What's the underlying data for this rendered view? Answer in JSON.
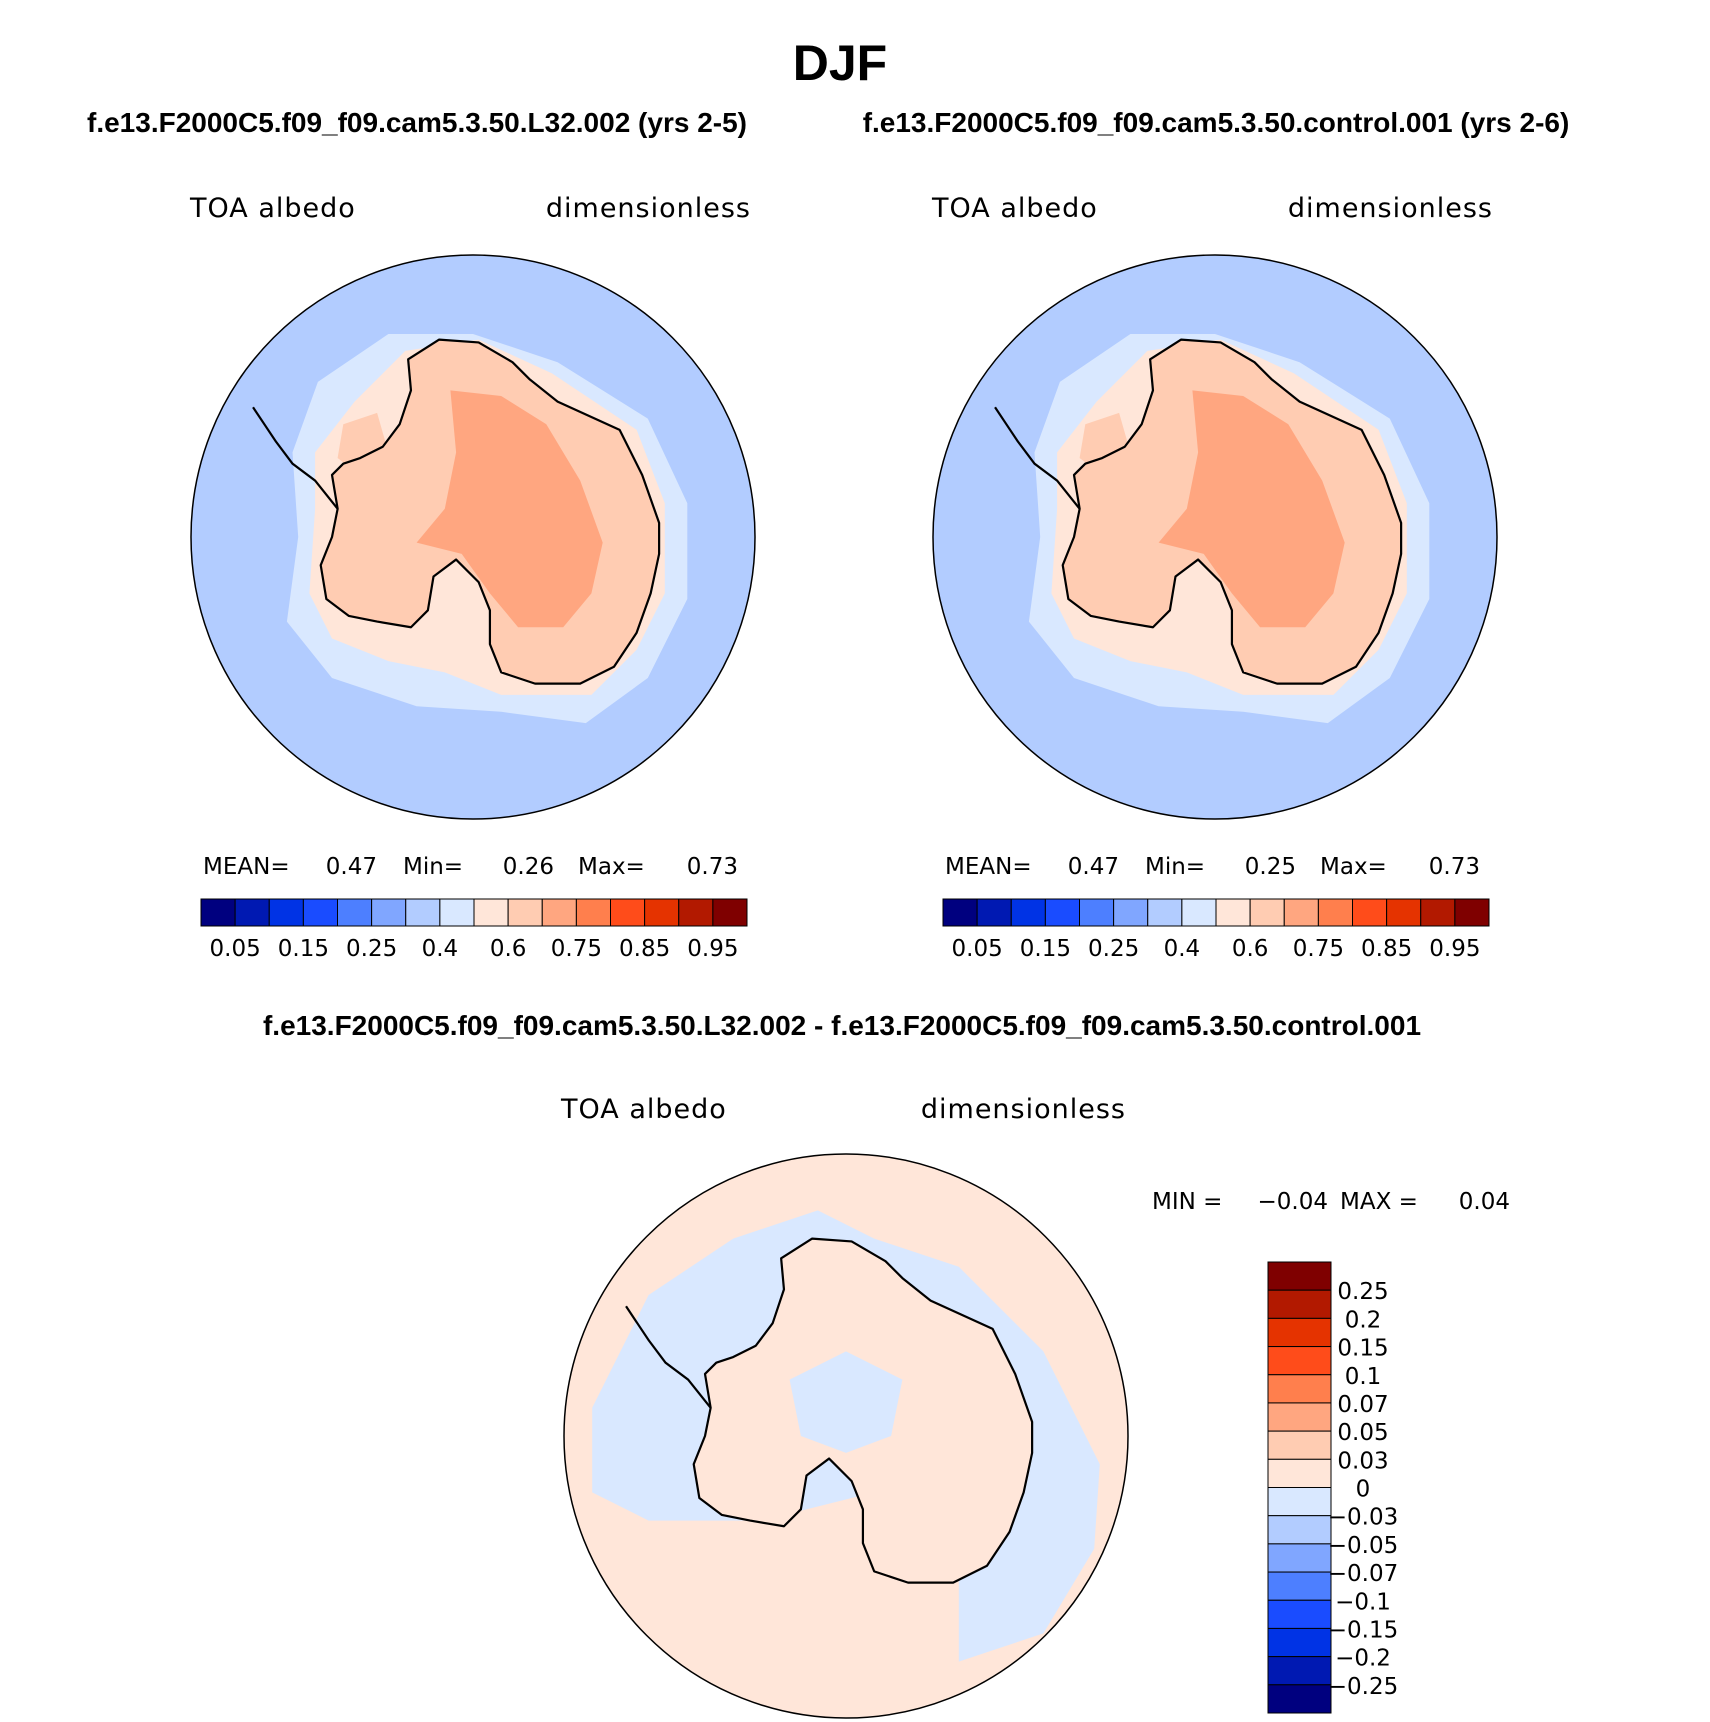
{
  "figure": {
    "title": "DJF"
  },
  "palettes": {
    "full_field": [
      "#00007f",
      "#0019b2",
      "#0033e5",
      "#1a4cff",
      "#4d7fff",
      "#80a6ff",
      "#b2ccff",
      "#d9e8ff",
      "#ffe6d9",
      "#ffccb2",
      "#ffa680",
      "#ff7f4d",
      "#ff4c1a",
      "#e53300",
      "#b21900",
      "#7f0000"
    ],
    "difference": [
      "#00007f",
      "#0019b2",
      "#0033e5",
      "#1a4cff",
      "#4d7fff",
      "#80a6ff",
      "#b2ccff",
      "#d9e8ff",
      "#ffe6d9",
      "#ffccb2",
      "#ffa680",
      "#ff7f4d",
      "#ff4c1a",
      "#e53300",
      "#b21900",
      "#7f0000"
    ],
    "ocean": "#b2ccff",
    "sea_ice": "#d9e8ff",
    "ice_edge": "#ffe6d9",
    "continent": "#ffccb2",
    "plateau": "#ffa680",
    "diff_pos": "#ffe6d9",
    "diff_neg": "#d9e8ff"
  },
  "chart_data": [
    {
      "type": "heatmap",
      "projection": "south-polar-stereographic",
      "title": "f.e13.F2000C5.f09_f09.cam5.3.50.L32.002 (yrs 2-5)",
      "variable": "TOA albedo",
      "units": "dimensionless",
      "stats": {
        "mean_label": "MEAN=",
        "mean": "0.47",
        "min_label": "Min=",
        "min": "0.26",
        "max_label": "Max=",
        "max": "0.73"
      },
      "colorbar": {
        "orientation": "horizontal",
        "tick_labels": [
          "0.05",
          "0.15",
          "0.25",
          "0.4",
          "0.6",
          "0.75",
          "0.85",
          "0.95"
        ],
        "levels": [
          0.05,
          0.1,
          0.15,
          0.2,
          0.25,
          0.3,
          0.4,
          0.5,
          0.6,
          0.7,
          0.75,
          0.8,
          0.85,
          0.9,
          0.95
        ]
      }
    },
    {
      "type": "heatmap",
      "projection": "south-polar-stereographic",
      "title": "f.e13.F2000C5.f09_f09.cam5.3.50.control.001 (yrs 2-6)",
      "variable": "TOA albedo",
      "units": "dimensionless",
      "stats": {
        "mean_label": "MEAN=",
        "mean": "0.47",
        "min_label": "Min=",
        "min": "0.25",
        "max_label": "Max=",
        "max": "0.73"
      },
      "colorbar": {
        "orientation": "horizontal",
        "tick_labels": [
          "0.05",
          "0.15",
          "0.25",
          "0.4",
          "0.6",
          "0.75",
          "0.85",
          "0.95"
        ],
        "levels": [
          0.05,
          0.1,
          0.15,
          0.2,
          0.25,
          0.3,
          0.4,
          0.5,
          0.6,
          0.7,
          0.75,
          0.8,
          0.85,
          0.9,
          0.95
        ]
      }
    },
    {
      "type": "heatmap",
      "projection": "south-polar-stereographic",
      "title": "f.e13.F2000C5.f09_f09.cam5.3.50.L32.002 - f.e13.F2000C5.f09_f09.cam5.3.50.control.001",
      "variable": "TOA albedo",
      "units": "dimensionless",
      "stats": {
        "min_label": "MIN =",
        "min": "−0.04",
        "max_label": "MAX =",
        "max": "0.04"
      },
      "colorbar": {
        "orientation": "vertical",
        "tick_labels": [
          "0.25",
          "0.2",
          "0.15",
          "0.1",
          "0.07",
          "0.05",
          "0.03",
          "0",
          "−0.03",
          "−0.05",
          "−0.07",
          "−0.1",
          "−0.15",
          "−0.2",
          "−0.25"
        ],
        "levels": [
          0.25,
          0.2,
          0.15,
          0.1,
          0.07,
          0.05,
          0.03,
          0,
          -0.03,
          -0.05,
          -0.07,
          -0.1,
          -0.15,
          -0.2,
          -0.25
        ]
      }
    }
  ]
}
